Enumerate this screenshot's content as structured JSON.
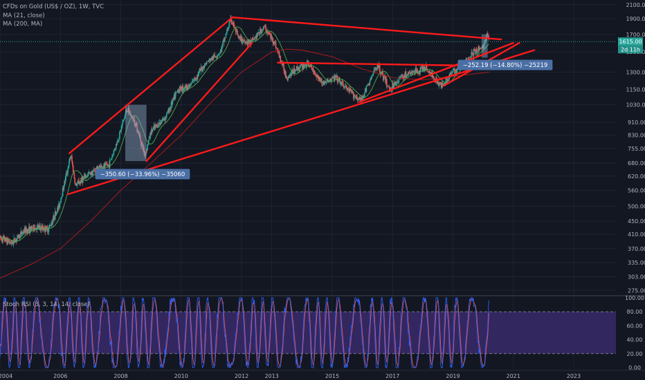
{
  "legend": {
    "title": "CFDs on Gold (US$ / OZ), 1W, TVC",
    "ma21": "MA (21, close)",
    "ma200": "MA (200, MA)",
    "stoch": "Stoch RSI (3, 3, 14, 14, close)"
  },
  "price_labels": {
    "current": "1615.00",
    "countdown": "2d 11h"
  },
  "annotations": {
    "drop_2008": "−350.60 (−33.96%) −35060",
    "drop_2020": "−252.19 (−14.80%) −25219"
  },
  "colors": {
    "background": "#131722",
    "grid": "#1f2433",
    "text": "#b2b5be",
    "up": "#26a69a",
    "down": "#ef5350",
    "ma21": "#4caf50",
    "ma200": "#b71c1c",
    "trendline": "#ff1a1a",
    "stoch_k": "#2962ff",
    "stoch_d": "#ef5350",
    "stoch_band": "#3a2a6a",
    "label_box": "#4a6fa5"
  },
  "chart_data": [
    {
      "type": "candlestick",
      "title": "CFDs on Gold (US$ / OZ), 1W, TVC",
      "y_scale": "log",
      "ylim": [
        270,
        2150
      ],
      "xlim": [
        2004.0,
        2024.4
      ],
      "x_ticks": [
        "2004",
        "2006",
        "2008",
        "2010",
        "2012",
        "2013",
        "2015",
        "2017",
        "2019",
        "2021",
        "2023"
      ],
      "x_tick_years": [
        2004,
        2006,
        2008,
        2010,
        2012,
        2013,
        2015,
        2017,
        2019,
        2021,
        2023
      ],
      "y_ticks": [
        "275.00",
        "303.00",
        "335.00",
        "370.00",
        "410.00",
        "450.00",
        "500.00",
        "560.00",
        "620.00",
        "680.00",
        "755.00",
        "830.00",
        "910.00",
        "1030.00",
        "1150.00",
        "1300.00",
        "1500.00",
        "1700.00",
        "1900.00",
        "2100.00"
      ],
      "y_tick_values": [
        275,
        303,
        335,
        370,
        410,
        450,
        500,
        560,
        620,
        680,
        755,
        830,
        910,
        1030,
        1150,
        1300,
        1500,
        1700,
        1900,
        2100
      ],
      "price_path": [
        [
          2004.0,
          400
        ],
        [
          2004.4,
          385
        ],
        [
          2004.8,
          420
        ],
        [
          2005.2,
          430
        ],
        [
          2005.6,
          425
        ],
        [
          2005.95,
          500
        ],
        [
          2006.35,
          720
        ],
        [
          2006.5,
          580
        ],
        [
          2006.9,
          625
        ],
        [
          2007.3,
          660
        ],
        [
          2007.6,
          670
        ],
        [
          2007.9,
          800
        ],
        [
          2008.2,
          1000
        ],
        [
          2008.5,
          900
        ],
        [
          2008.8,
          720
        ],
        [
          2009.0,
          850
        ],
        [
          2009.5,
          950
        ],
        [
          2009.9,
          1150
        ],
        [
          2010.3,
          1180
        ],
        [
          2010.8,
          1380
        ],
        [
          2011.3,
          1500
        ],
        [
          2011.65,
          1900
        ],
        [
          2011.9,
          1650
        ],
        [
          2012.3,
          1600
        ],
        [
          2012.75,
          1790
        ],
        [
          2013.1,
          1600
        ],
        [
          2013.5,
          1250
        ],
        [
          2013.8,
          1330
        ],
        [
          2014.2,
          1380
        ],
        [
          2014.7,
          1200
        ],
        [
          2015.1,
          1250
        ],
        [
          2015.5,
          1150
        ],
        [
          2015.95,
          1060
        ],
        [
          2016.5,
          1370
        ],
        [
          2016.9,
          1150
        ],
        [
          2017.3,
          1260
        ],
        [
          2017.7,
          1300
        ],
        [
          2018.1,
          1340
        ],
        [
          2018.6,
          1180
        ],
        [
          2019.0,
          1300
        ],
        [
          2019.5,
          1420
        ],
        [
          2019.7,
          1500
        ],
        [
          2020.0,
          1560
        ],
        [
          2020.15,
          1700
        ],
        [
          2020.2,
          1615
        ]
      ],
      "ma200_path": [
        [
          2004.0,
          300
        ],
        [
          2005.0,
          330
        ],
        [
          2006.0,
          370
        ],
        [
          2007.0,
          450
        ],
        [
          2008.0,
          560
        ],
        [
          2009.0,
          680
        ],
        [
          2010.0,
          830
        ],
        [
          2011.0,
          1050
        ],
        [
          2012.0,
          1300
        ],
        [
          2013.0,
          1500
        ],
        [
          2013.5,
          1530
        ],
        [
          2014.0,
          1520
        ],
        [
          2015.0,
          1450
        ],
        [
          2016.0,
          1330
        ],
        [
          2017.0,
          1250
        ],
        [
          2018.0,
          1230
        ],
        [
          2019.0,
          1260
        ],
        [
          2020.2,
          1300
        ]
      ],
      "trendlines": [
        {
          "from": [
            2006.3,
            730
          ],
          "to": [
            2011.7,
            1920
          ]
        },
        {
          "from": [
            2008.85,
            690
          ],
          "to": [
            2012.35,
            1600
          ]
        },
        {
          "from": [
            2011.7,
            1920
          ],
          "to": [
            2020.6,
            1640
          ]
        },
        {
          "from": [
            2006.25,
            545
          ],
          "to": [
            2021.7,
            1520
          ]
        },
        {
          "from": [
            2013.2,
            1390
          ],
          "to": [
            2019.9,
            1360
          ]
        },
        {
          "from": [
            2015.9,
            1050
          ],
          "to": [
            2021.0,
            1600
          ]
        },
        {
          "from": [
            2018.7,
            1180
          ],
          "to": [
            2021.2,
            1600
          ]
        }
      ],
      "measure_boxes": [
        {
          "x_range": [
            2008.15,
            2008.85
          ],
          "y_range": [
            690,
            1030
          ],
          "label": "−350.60 (−33.96%) −35060"
        },
        {
          "x_range": [
            2019.95,
            2020.15
          ],
          "y_range": [
            1440,
            1700
          ],
          "label": "−252.19 (−14.80%) −25219"
        }
      ],
      "last_price": 1615.0
    },
    {
      "type": "line",
      "title": "Stoch RSI (3, 3, 14, 14, close)",
      "ylim": [
        0,
        100
      ],
      "y_ticks": [
        "100.00",
        "80.00",
        "60.00",
        "40.00",
        "20.00",
        "0.00"
      ],
      "y_tick_values": [
        100,
        80,
        60,
        40,
        20,
        0
      ],
      "band": [
        20,
        80
      ]
    }
  ]
}
